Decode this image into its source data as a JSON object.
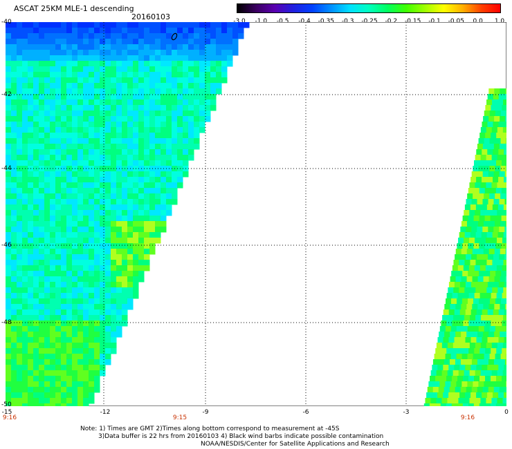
{
  "title": "ASCAT 25KM MLE-1 descending",
  "date": "20160103",
  "colorbar": {
    "labels": [
      "-3.0",
      "-1.0",
      "-0.5",
      "-0.4",
      "-0.35",
      "-0.3",
      "-0.25",
      "-0.2",
      "-0.15",
      "-0.1",
      "-0.05",
      "0.0",
      "1.0"
    ],
    "colors": [
      "#000000",
      "#3a0060",
      "#5a00b0",
      "#2020e0",
      "#0040ff",
      "#0090ff",
      "#00e0ff",
      "#00ffc0",
      "#00ff60",
      "#40ff00",
      "#a0ff00",
      "#ffff00",
      "#ffb000",
      "#ff4000",
      "#ff0000"
    ]
  },
  "axes": {
    "lat_labels": [
      "-40",
      "-42",
      "-44",
      "-46",
      "-48",
      "-50"
    ],
    "lon_labels": [
      "-15",
      "-12",
      "-9",
      "-6",
      "-3",
      "0"
    ],
    "time_labels": [
      "9:16",
      "9:15",
      "9:16"
    ]
  },
  "notes": {
    "line1": "Note: 1) Times are GMT 2)Times along bottom correspond to measurement at -45S",
    "line2": "3)Data buffer is 22 hrs from 20160103 4) Black wind barbs indicate possible contamination",
    "line3": "NOAA/NESDIS/Center for Satellite Applications and Research"
  }
}
